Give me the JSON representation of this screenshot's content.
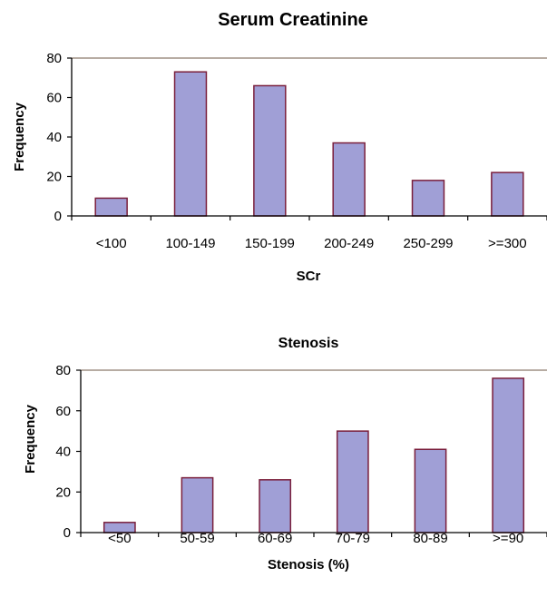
{
  "chart_data": [
    {
      "type": "bar",
      "title": "Serum Creatinine",
      "xlabel": "SCr",
      "ylabel": "Frequency",
      "categories": [
        "<100",
        "100-149",
        "150-199",
        "200-249",
        "250-299",
        ">=300"
      ],
      "values": [
        9,
        73,
        66,
        37,
        18,
        22
      ],
      "ylim": [
        0,
        80
      ],
      "yticks": [
        "0",
        "20",
        "40",
        "60",
        "80"
      ],
      "grid": false,
      "legend": "none",
      "colors": {
        "bar_fill": "#a09fd6",
        "bar_stroke": "#7a1f3c",
        "axis": "#000000",
        "top_border": "#8c7b6c"
      }
    },
    {
      "type": "bar",
      "title": "Stenosis",
      "xlabel": "Stenosis (%)",
      "ylabel": "Frequency",
      "categories": [
        "<50",
        "50-59",
        "60-69",
        "70-79",
        "80-89",
        ">=90"
      ],
      "values": [
        5,
        27,
        26,
        50,
        41,
        76
      ],
      "ylim": [
        0,
        80
      ],
      "yticks": [
        "0",
        "20",
        "40",
        "60",
        "80"
      ],
      "grid": false,
      "legend": "none",
      "colors": {
        "bar_fill": "#a09fd6",
        "bar_stroke": "#7a1f3c",
        "axis": "#000000",
        "top_border": "#8c7b6c"
      }
    }
  ]
}
